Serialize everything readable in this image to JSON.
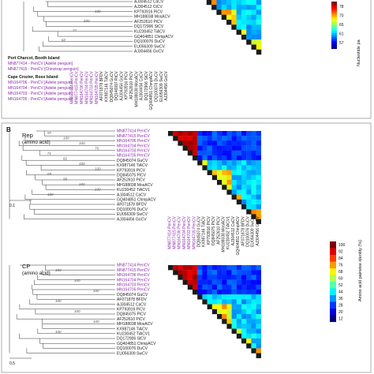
{
  "panel_b": {
    "label": "B"
  },
  "panel_a": {
    "taxa": [
      "AJ304512 CaCV",
      "AJ304512 CtCV",
      "KP793916 PiCV",
      "MH188038 MosACV",
      "AF252610 PiCV",
      "DQ172906 StCV",
      "KU230452 TiACV",
      "GQ404851 ChmpACV",
      "DQ100076 DuCV",
      "EU056309 SwCV",
      "AJ304456 GoCV"
    ],
    "bootstrap": [
      "100",
      "100",
      "72",
      "62"
    ],
    "colorbar_ticks": [
      "78",
      "70",
      "65",
      "61",
      "57"
    ],
    "colorbar_label": "Nucleotide pa",
    "column_labels": [
      "MN877414 PenCV",
      "MN877415 PenCV",
      "MN164706 PenCV",
      "MN164704 PenCV",
      "MN164703 PenCV",
      "MN164705 PenCV",
      "AF071878 BFDV",
      "KX987146 TiACV",
      "DQ845074 GuCV",
      "DQ146997 RtCV",
      "AJ304456 GoCV",
      "KP793916 PiCV",
      "AF252610 PiCV",
      "MH188038 MosACV",
      "AJ304456 CaCV",
      "DQ172906 StCV",
      "GQ404851 ChmpACV",
      "DQ100076 DuCV",
      "EU056309 SwCV",
      "AJ304456 GoCV"
    ],
    "site1_title": "Port Charcot, Booth Island",
    "site1_items": [
      "MN877414 - PenCV [Adelie penguin]",
      "MN877415 - PenCV [Chinstrap penguin]"
    ],
    "site2_title": "Cape Crozier, Ross Island",
    "site2_items": [
      "MN164706 - PenCV [Adelie penguin]",
      "MN164704 - PenCV [Adelie penguin]",
      "MN164703 - PenCV [Adelie penguin]",
      "MN164705 - PenCV [Adelie penguin]"
    ]
  },
  "rep": {
    "title1": "Rep",
    "title2": "(amino acid)",
    "scale": "0.1",
    "taxa_purple": [
      "MN877414 PenCV",
      "MN877415 PenCV",
      "MN164706 PenCV",
      "MN164704 PenCV",
      "MN164703 PenCV",
      "MN164705 PenCV"
    ],
    "taxa": [
      "DQ845074 GuCV",
      "KX987146 TiACV",
      "KP793916 PiCV",
      "DQ845075 PiCV",
      "AF252610 PiCV",
      "MH188038 MosACV",
      "KU230452 TiACV1",
      "AJ304512 CaCV",
      "GQ404851 ChmpACV",
      "AF071878 BFDV",
      "DQ100076 DuCV",
      "EU056309 SwCV",
      "AJ304456 GoCV"
    ],
    "bootstrap": [
      "97",
      "100",
      "100",
      "79",
      "71",
      "82",
      "100",
      "100",
      "69",
      "99",
      "100",
      "100",
      "100"
    ],
    "column_labels": [
      "MN877414 PenCV",
      "MN877415 PenCV",
      "MN164706 PenCV",
      "MN164704 PenCV",
      "MN164703 PenCV",
      "MN164705 PenCV",
      "DQ845074 GuCV",
      "KX987146 TiACV",
      "KP793916 PiCV",
      "DQ845075 PiCV",
      "AF252610 PiCV",
      "MH188038 MosACV",
      "KU230452 TiACV1",
      "AJ304512 CaCV",
      "GQ404851 ChmpACV",
      "AF071878 BFDV",
      "DQ100076 DuCV",
      "EU056309 SwCV",
      "AJ304456 GoCV"
    ]
  },
  "cp": {
    "title1": "CP",
    "title2": "(amino acid)",
    "scale": "0.5",
    "taxa_purple": [
      "MN877414 PenCV",
      "MN877415 PenCV",
      "MN164706 PenCV",
      "MN164704 PenCV",
      "MN164703 PenCV",
      "MN164705 PenCV"
    ],
    "taxa": [
      "DQ845074 GuCV",
      "AF071878 BFDV",
      "AJ304512 CaCV",
      "KP793916 PiCV",
      "DQ845075 PiCV",
      "AF252610 PiCV",
      "MH188038 MosACV",
      "KX987146 TiACV",
      "KU230452 TiACV1",
      "DQ172906 StCV",
      "GQ404851 ChmpACV",
      "DQ100076 DuCV",
      "EU056309 SwCV"
    ],
    "bootstrap": [
      "100",
      "100",
      "100",
      "100",
      "100",
      "100",
      "100"
    ]
  },
  "aa_colorbar": {
    "ticks": [
      "100",
      "92",
      "84",
      "76",
      "68",
      "60",
      "52",
      "44",
      "36",
      "28",
      "20",
      "12"
    ],
    "label": "Amino acid pairwise identity (%)"
  }
}
